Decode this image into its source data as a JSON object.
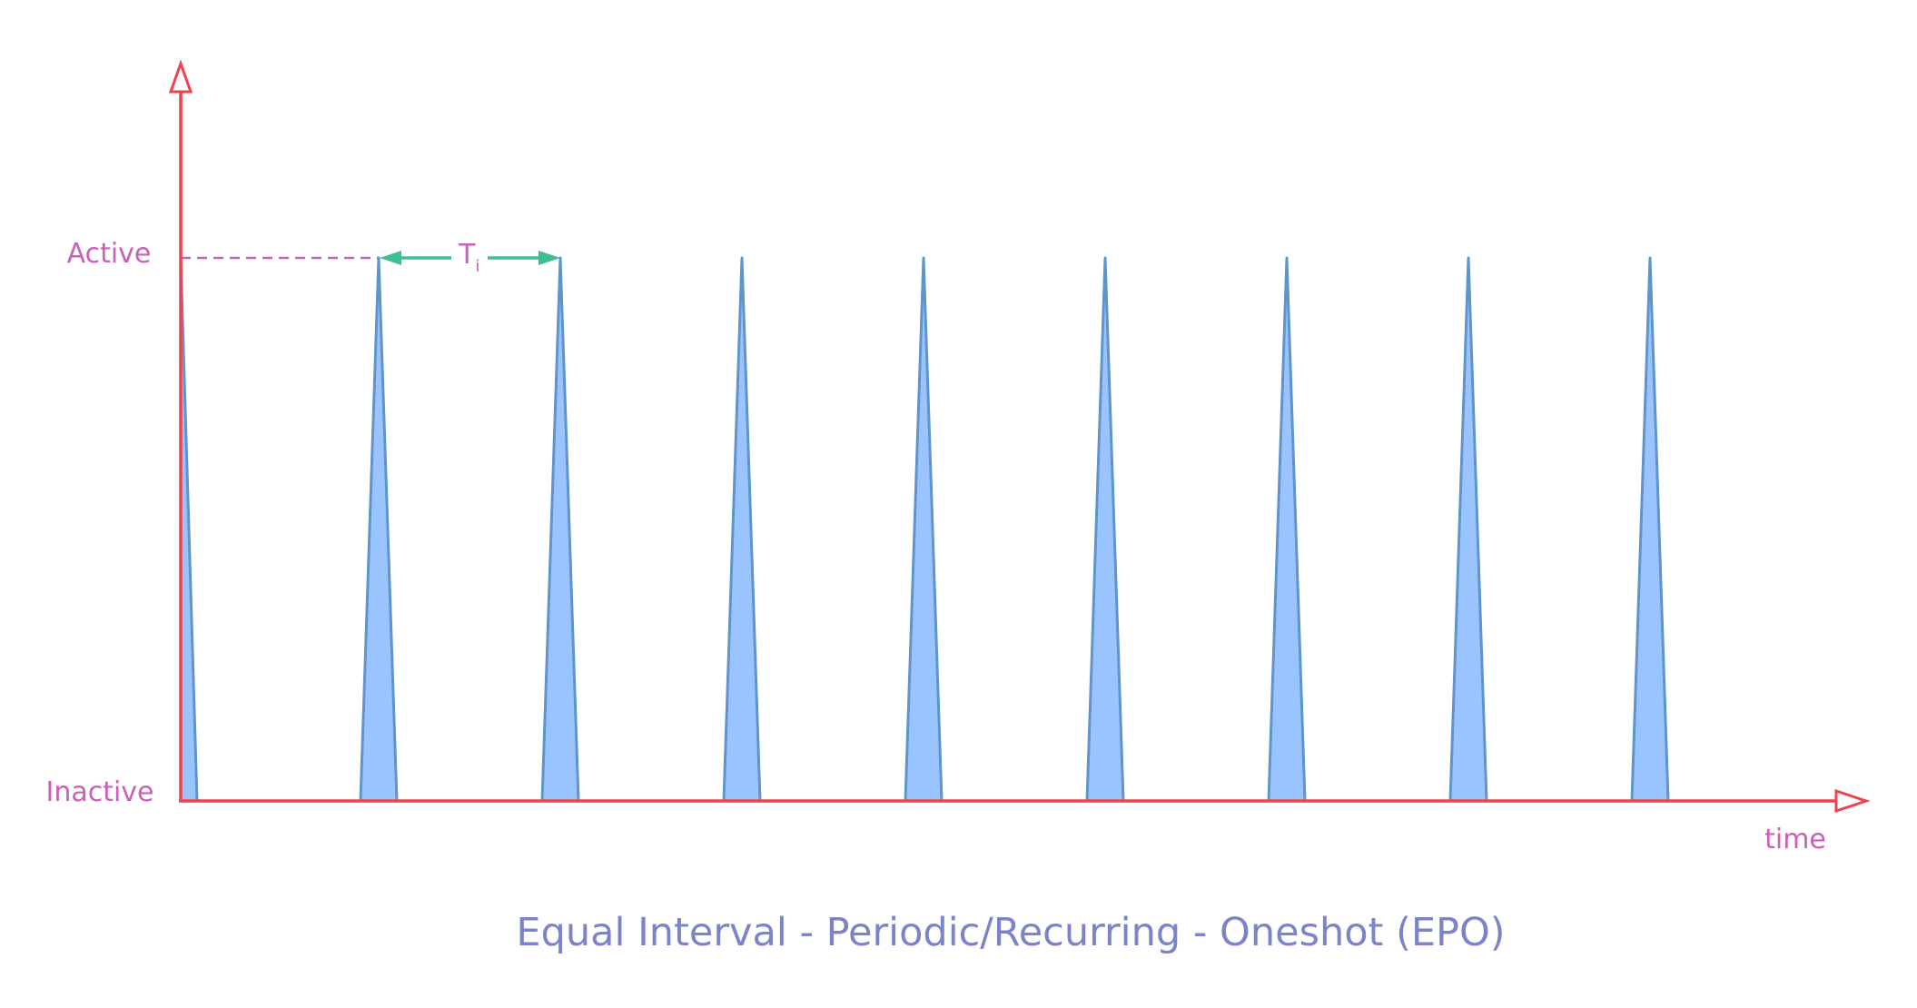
{
  "diagram": {
    "title": "Equal Interval - Periodic/Recurring - Oneshot (EPO)",
    "y_labels": {
      "active": "Active",
      "inactive": "Inactive"
    },
    "x_label": "time",
    "interval": {
      "main": "T",
      "sub": "i"
    },
    "pulse_count": 9,
    "colors": {
      "axis": "#f0414f",
      "pulse_fill": "#99c4ff",
      "pulse_stroke": "#5f95c8",
      "label": "#cc5fb6",
      "title": "#7b84c8",
      "interval_arrow": "#3dbf8f",
      "guide": "#cc5fb6"
    }
  }
}
